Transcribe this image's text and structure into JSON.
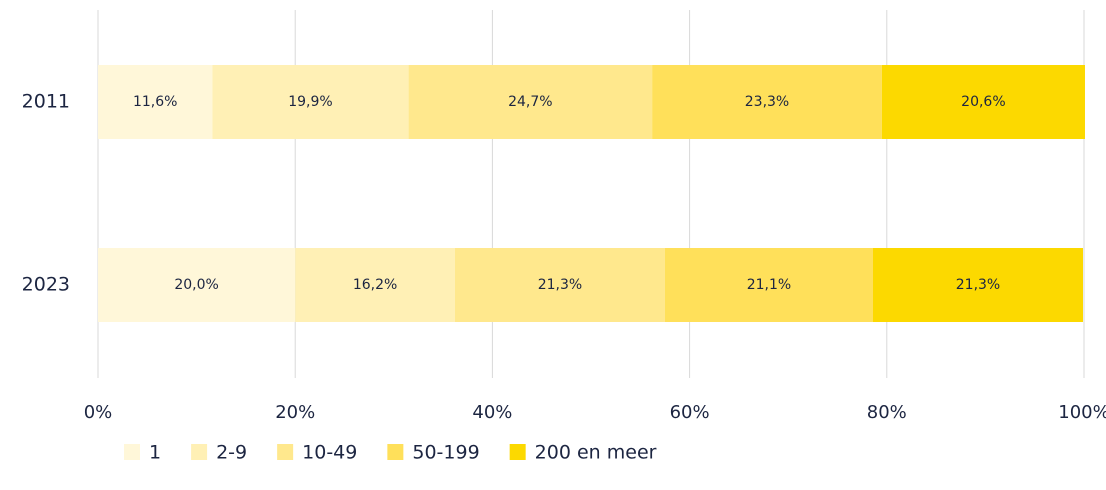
{
  "chart_data": {
    "type": "stacked_barh",
    "categories": [
      "2011",
      "2023"
    ],
    "series": [
      {
        "name": "1",
        "color": "#fff7d9",
        "values": [
          11.6,
          20.0
        ],
        "value_labels": [
          "11,6%",
          "20,0%"
        ]
      },
      {
        "name": "2-9",
        "color": "#fff0b5",
        "values": [
          19.9,
          16.2
        ],
        "value_labels": [
          "19,9%",
          "16,2%"
        ]
      },
      {
        "name": "10-49",
        "color": "#ffe88d",
        "values": [
          24.7,
          21.3
        ],
        "value_labels": [
          "24,7%",
          "21,3%"
        ]
      },
      {
        "name": "50-199",
        "color": "#ffe05a",
        "values": [
          23.3,
          21.1
        ],
        "value_labels": [
          "23,3%",
          "21,1%"
        ]
      },
      {
        "name": "200 en meer",
        "color": "#fcd900",
        "values": [
          20.6,
          21.3
        ],
        "value_labels": [
          "20,6%",
          "21,3%"
        ]
      }
    ],
    "xlim": [
      0,
      100
    ],
    "xticks": [
      {
        "value": 0,
        "label": "0%"
      },
      {
        "value": 20,
        "label": "20%"
      },
      {
        "value": 40,
        "label": "40%"
      },
      {
        "value": 60,
        "label": "60%"
      },
      {
        "value": 80,
        "label": "80%"
      },
      {
        "value": 100,
        "label": "100%"
      }
    ],
    "grid": true,
    "legend": "bottom-left"
  }
}
